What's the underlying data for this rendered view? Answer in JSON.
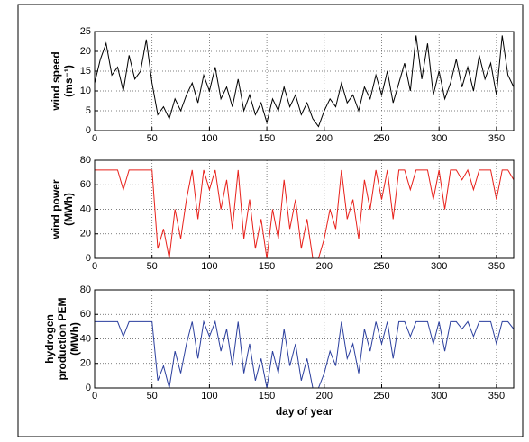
{
  "chart_data": [
    {
      "type": "line",
      "ylabel": [
        "wind speed",
        "(ms⁻¹)"
      ],
      "x": [
        0,
        5,
        10,
        15,
        20,
        25,
        30,
        35,
        40,
        45,
        50,
        55,
        60,
        65,
        70,
        75,
        80,
        85,
        90,
        95,
        100,
        105,
        110,
        115,
        120,
        125,
        130,
        135,
        140,
        145,
        150,
        155,
        160,
        165,
        170,
        175,
        180,
        185,
        190,
        195,
        200,
        205,
        210,
        215,
        220,
        225,
        230,
        235,
        240,
        245,
        250,
        255,
        260,
        265,
        270,
        275,
        280,
        285,
        290,
        295,
        300,
        305,
        310,
        315,
        320,
        325,
        330,
        335,
        340,
        345,
        350,
        355,
        360,
        365
      ],
      "values": [
        12,
        18,
        22,
        14,
        16,
        10,
        19,
        13,
        15,
        23,
        12,
        4,
        6,
        3,
        8,
        5,
        9,
        12,
        7,
        14,
        10,
        16,
        8,
        11,
        6,
        13,
        5,
        9,
        4,
        7,
        2,
        8,
        5,
        11,
        6,
        9,
        4,
        7,
        3,
        1,
        5,
        8,
        6,
        12,
        7,
        9,
        5,
        11,
        8,
        14,
        9,
        15,
        7,
        12,
        17,
        10,
        24,
        13,
        22,
        9,
        15,
        8,
        12,
        18,
        11,
        16,
        10,
        19,
        13,
        17,
        9,
        24,
        14,
        11
      ],
      "color": "#000000",
      "xlim": [
        0,
        365
      ],
      "xticks": [
        0,
        50,
        100,
        150,
        200,
        250,
        300,
        350
      ],
      "ylim": [
        0,
        25
      ],
      "yticks": [
        0,
        5,
        10,
        15,
        20,
        25
      ],
      "grid": true
    },
    {
      "type": "line",
      "ylabel": [
        "wind power",
        "(MWh)"
      ],
      "x": [
        0,
        5,
        10,
        15,
        20,
        25,
        30,
        35,
        40,
        45,
        50,
        55,
        60,
        65,
        70,
        75,
        80,
        85,
        90,
        95,
        100,
        105,
        110,
        115,
        120,
        125,
        130,
        135,
        140,
        145,
        150,
        155,
        160,
        165,
        170,
        175,
        180,
        185,
        190,
        195,
        200,
        205,
        210,
        215,
        220,
        225,
        230,
        235,
        240,
        245,
        250,
        255,
        260,
        265,
        270,
        275,
        280,
        285,
        290,
        295,
        300,
        305,
        310,
        315,
        320,
        325,
        330,
        335,
        340,
        345,
        350,
        355,
        360,
        365
      ],
      "values": [
        72,
        72,
        72,
        72,
        72,
        56,
        72,
        72,
        72,
        72,
        72,
        8,
        24,
        0,
        40,
        16,
        48,
        72,
        32,
        72,
        56,
        72,
        40,
        64,
        24,
        72,
        16,
        48,
        8,
        32,
        0,
        40,
        16,
        64,
        24,
        48,
        8,
        32,
        0,
        0,
        16,
        40,
        24,
        72,
        32,
        48,
        16,
        64,
        40,
        72,
        48,
        72,
        32,
        72,
        72,
        56,
        72,
        72,
        72,
        48,
        72,
        40,
        72,
        72,
        64,
        72,
        56,
        72,
        72,
        72,
        48,
        72,
        72,
        64
      ],
      "color": "#e8201a",
      "xlim": [
        0,
        365
      ],
      "xticks": [
        0,
        50,
        100,
        150,
        200,
        250,
        300,
        350
      ],
      "ylim": [
        0,
        80
      ],
      "yticks": [
        0,
        20,
        40,
        60,
        80
      ],
      "grid": true
    },
    {
      "type": "line",
      "ylabel": [
        "hydrogen",
        "production PEM",
        "(MWh)"
      ],
      "xlabel": "day of year",
      "x": [
        0,
        5,
        10,
        15,
        20,
        25,
        30,
        35,
        40,
        45,
        50,
        55,
        60,
        65,
        70,
        75,
        80,
        85,
        90,
        95,
        100,
        105,
        110,
        115,
        120,
        125,
        130,
        135,
        140,
        145,
        150,
        155,
        160,
        165,
        170,
        175,
        180,
        185,
        190,
        195,
        200,
        205,
        210,
        215,
        220,
        225,
        230,
        235,
        240,
        245,
        250,
        255,
        260,
        265,
        270,
        275,
        280,
        285,
        290,
        295,
        300,
        305,
        310,
        315,
        320,
        325,
        330,
        335,
        340,
        345,
        350,
        355,
        360,
        365
      ],
      "values": [
        54,
        54,
        54,
        54,
        54,
        42,
        54,
        54,
        54,
        54,
        54,
        6,
        18,
        0,
        30,
        12,
        36,
        54,
        24,
        54,
        42,
        54,
        30,
        48,
        18,
        54,
        12,
        36,
        6,
        24,
        0,
        30,
        12,
        48,
        18,
        36,
        6,
        24,
        0,
        0,
        12,
        30,
        18,
        54,
        24,
        36,
        12,
        48,
        30,
        54,
        36,
        54,
        24,
        54,
        54,
        42,
        54,
        54,
        54,
        36,
        54,
        30,
        54,
        54,
        48,
        54,
        42,
        54,
        54,
        54,
        36,
        54,
        54,
        48
      ],
      "color": "#2b3f9e",
      "xlim": [
        0,
        365
      ],
      "xticks": [
        0,
        50,
        100,
        150,
        200,
        250,
        300,
        350
      ],
      "ylim": [
        0,
        80
      ],
      "yticks": [
        0,
        20,
        40,
        60,
        80
      ],
      "grid": true
    }
  ]
}
